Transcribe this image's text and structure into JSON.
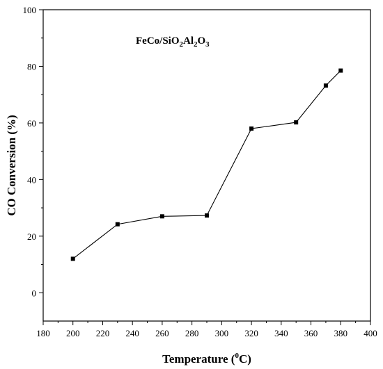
{
  "chart_data": {
    "type": "line",
    "annotation": {
      "parts": [
        {
          "text": "FeCo/SiO",
          "sub": false
        },
        {
          "text": "2",
          "sub": true
        },
        {
          "text": "Al",
          "sub": false
        },
        {
          "text": "2",
          "sub": true
        },
        {
          "text": "O",
          "sub": false
        },
        {
          "text": "3",
          "sub": true
        }
      ]
    },
    "xlabel": {
      "main": "Temperature (",
      "sup": "0",
      "tail": "C)"
    },
    "ylabel": "CO Conversion (%)",
    "xlim": [
      180,
      400
    ],
    "ylim": [
      -10,
      100
    ],
    "xticks": [
      180,
      200,
      220,
      240,
      260,
      280,
      300,
      320,
      340,
      360,
      380,
      400
    ],
    "yticks": [
      0,
      20,
      40,
      60,
      80,
      100
    ],
    "grid": false,
    "series": [
      {
        "x": [
          200,
          230,
          260,
          290,
          320,
          350,
          370,
          380
        ],
        "y": [
          12,
          24.2,
          27,
          27.3,
          58,
          60.2,
          73.2,
          78.5
        ],
        "marker": "square",
        "color": "#000000"
      }
    ]
  }
}
